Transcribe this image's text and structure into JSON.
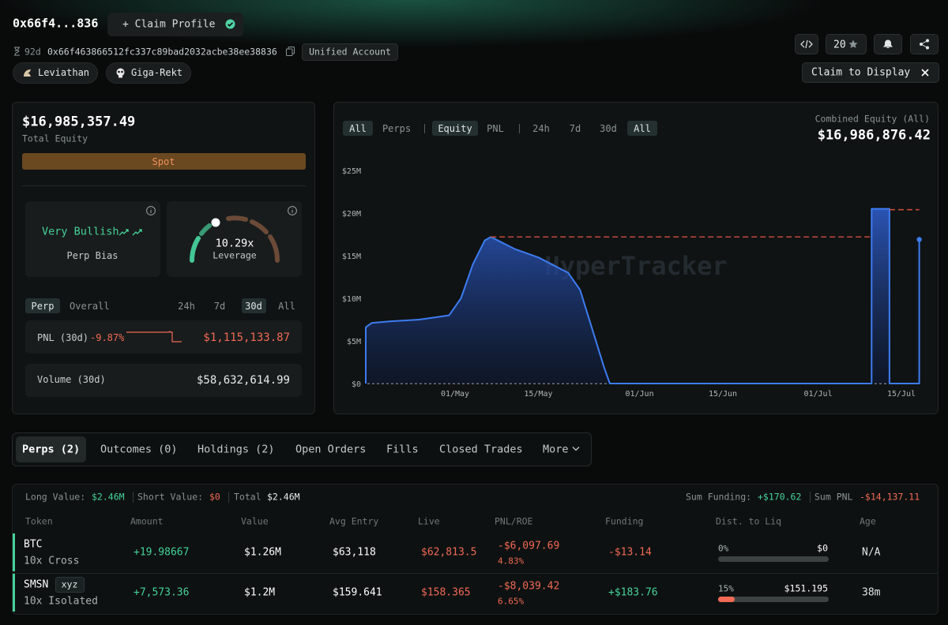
{
  "header": {
    "address": "0x66f4...836",
    "claim_profile": "+ Claim Profile",
    "age": "92d",
    "full_address": "0x66f463866512fc337c89bad2032acbe38ee38836",
    "account_type": "Unified Account",
    "badges": [
      "Leviathan",
      "Giga-Rekt"
    ],
    "star_count": "20",
    "claim_display": "Claim to Display"
  },
  "summary": {
    "total_equity": "$16,985,357.49",
    "total_equity_label": "Total Equity",
    "spot": "Spot",
    "perp_bias": "Very Bullish",
    "perp_bias_label": "Perp Bias",
    "leverage": "10.29x",
    "leverage_label": "Leverage",
    "tabs": [
      "Perp",
      "Overall"
    ],
    "periods": [
      "24h",
      "7d",
      "30d",
      "All"
    ],
    "pnl_label": "PNL (30d)",
    "pnl_pct": "-9.87%",
    "pnl_value": "$1,115,133.87",
    "volume_label": "Volume (30d)",
    "volume_value": "$58,632,614.99"
  },
  "chart_data": {
    "type": "area",
    "filters": [
      "All",
      "Perps",
      "Equity",
      "PNL",
      "24h",
      "7d",
      "30d",
      "All"
    ],
    "combined_label": "Combined Equity (All)",
    "combined_value": "$16,986,876.42",
    "watermark": "HyperTracker",
    "x": [
      "16/Apr",
      "16/Apr",
      "17/Apr",
      "20/Apr",
      "25/Apr",
      "30/Apr",
      "02/May",
      "04/May",
      "06/May",
      "07/May",
      "11/May",
      "15/May",
      "20/May",
      "22/May",
      "24/May",
      "26/May",
      "27/May",
      "10/Jul",
      "10/Jul",
      "13/Jul",
      "13/Jul",
      "18/Jul",
      "18/Jul"
    ],
    "series": [
      {
        "name": "Equity",
        "color": "#3d7cf0",
        "values": [
          0,
          6.6,
          7.1,
          7.3,
          7.5,
          8.0,
          10.0,
          14.0,
          16.8,
          17.2,
          15.8,
          14.8,
          13.0,
          11.0,
          6.5,
          2.0,
          0,
          0,
          20.5,
          20.5,
          0,
          0,
          16.9
        ]
      }
    ],
    "reference_lines": [
      {
        "value": 17.2,
        "from": "07/May",
        "to": "10/Jul",
        "color": "#c4493c"
      },
      {
        "value": 20.4,
        "from": "13/Jul",
        "to": "18/Jul",
        "color": "#c4493c"
      }
    ],
    "ylim": [
      0,
      25
    ],
    "yticks": [
      {
        "value": 0,
        "label": "$0"
      },
      {
        "value": 5,
        "label": "$5M"
      },
      {
        "value": 10,
        "label": "$10M"
      },
      {
        "value": 15,
        "label": "$15M"
      },
      {
        "value": 20,
        "label": "$20M"
      },
      {
        "value": 25,
        "label": "$25M"
      }
    ],
    "xticks": [
      "01/May",
      "15/May",
      "01/Jun",
      "15/Jun",
      "01/Jul",
      "15/Jul"
    ]
  },
  "tabs": [
    "Perps (2)",
    "Outcomes (0)",
    "Holdings (2)",
    "Open Orders",
    "Fills",
    "Closed Trades",
    "More"
  ],
  "positions": {
    "long_label": "Long Value:",
    "long": "$2.46M",
    "short_label": "Short Value:",
    "short": "$0",
    "total_label": "Total",
    "total": "$2.46M",
    "sum_funding_label": "Sum Funding:",
    "sum_funding": "+$170.62",
    "sum_pnl_label": "Sum PNL",
    "sum_pnl": "-$14,137.11"
  },
  "table": {
    "columns": [
      "Token",
      "Amount",
      "Value",
      "Avg Entry",
      "Live",
      "PNL/ROE",
      "Funding",
      "Dist. to Liq",
      "Age"
    ],
    "rows": [
      {
        "token": "BTC",
        "leverage": "10x Cross",
        "amount": "+19.98667",
        "value": "$1.26M",
        "avg_entry": "$63,118",
        "live": "$62,813.5",
        "pnl": "-$6,097.69",
        "roe": "4.83%",
        "funding": "-$13.14",
        "dist": {
          "value": 0,
          "label": "0%"
        },
        "liq_price": "$0",
        "age": "N/A"
      },
      {
        "token": "SMSN",
        "tag": "xyz",
        "leverage": "10x Isolated",
        "amount": "+7,573.36",
        "value": "$1.2M",
        "avg_entry": "$159.641",
        "live": "$158.365",
        "pnl": "-$8,039.42",
        "roe": "6.65%",
        "funding": "+$183.76",
        "dist": {
          "value": 15,
          "label": "15%"
        },
        "liq_price": "$151.195",
        "age": "38m"
      }
    ]
  }
}
